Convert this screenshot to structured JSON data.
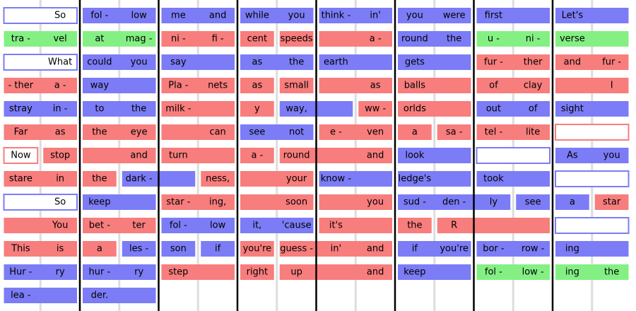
{
  "colors": {
    "red": "#f87d7d",
    "blue": "#7c7cf6",
    "green": "#84f084",
    "outline-blue": "#7c7cf6",
    "outline-red": "#f87d7d"
  },
  "rows": [
    {
      "blocks": [
        {
          "color": "outline-blue",
          "slots": [
            null,
            "So"
          ]
        },
        {
          "color": "blue",
          "slots": [
            "fol -",
            "low"
          ]
        },
        {
          "color": "blue",
          "slots": [
            "me",
            "and"
          ]
        },
        {
          "color": "blue",
          "slots": [
            "while",
            "you"
          ]
        },
        {
          "color": "blue",
          "slots": [
            "think -",
            "in'"
          ]
        },
        {
          "color": "blue",
          "slots": [
            "you",
            "were"
          ]
        },
        {
          "color": "blue",
          "slots": [
            "first",
            null
          ]
        },
        {
          "color": "blue",
          "slots": [
            "Let's",
            null
          ]
        }
      ]
    },
    {
      "blocks": [
        {
          "color": "green",
          "slots": [
            "tra -",
            "vel"
          ]
        },
        {
          "color": "green",
          "slots": [
            "at",
            "mag -"
          ]
        },
        {
          "color": "red",
          "slots": [
            "ni -",
            "fi -"
          ]
        },
        {
          "color": "red",
          "slots": [
            "cent"
          ]
        },
        {
          "color": "red",
          "slots": [
            "speeds"
          ]
        },
        {
          "color": "red",
          "slots": [
            null,
            "a -"
          ]
        },
        {
          "color": "blue",
          "slots": [
            "round",
            "the"
          ]
        },
        {
          "color": "green",
          "slots": [
            "u -",
            "ni -"
          ]
        },
        {
          "color": "green",
          "slots": [
            "verse",
            null
          ]
        }
      ]
    },
    {
      "blocks": [
        {
          "color": "outline-blue",
          "slots": [
            null,
            "What"
          ]
        },
        {
          "color": "blue",
          "slots": [
            "could",
            "you"
          ]
        },
        {
          "color": "blue",
          "slots": [
            "say",
            null
          ]
        },
        {
          "color": "blue",
          "slots": [
            "as",
            "the"
          ]
        },
        {
          "color": "blue",
          "slots": [
            "earth",
            null
          ]
        },
        {
          "color": "blue",
          "slots": [
            "gets",
            null
          ]
        },
        {
          "color": "red",
          "slots": [
            "fur -",
            "ther"
          ]
        },
        {
          "color": "red",
          "slots": [
            "and",
            "fur -"
          ]
        }
      ]
    },
    {
      "blocks": [
        {
          "color": "red",
          "slots": [
            "- ther",
            "a -"
          ]
        },
        {
          "color": "blue",
          "slots": [
            "way",
            null
          ]
        },
        {
          "color": "red",
          "slots": [
            "Pla -",
            "nets"
          ]
        },
        {
          "color": "red",
          "slots": [
            "as"
          ]
        },
        {
          "color": "red",
          "slots": [
            "small"
          ]
        },
        {
          "color": "red",
          "slots": [
            null,
            "as"
          ]
        },
        {
          "color": "red",
          "slots": [
            "balls",
            null
          ]
        },
        {
          "color": "red",
          "slots": [
            "of",
            "clay"
          ]
        },
        {
          "color": "red",
          "slots": [
            null,
            "I"
          ]
        }
      ]
    },
    {
      "blocks": [
        {
          "color": "blue",
          "slots": [
            "stray",
            "in -"
          ]
        },
        {
          "color": "blue",
          "slots": [
            "to",
            "the"
          ]
        },
        {
          "color": "red",
          "slots": [
            "milk -",
            null
          ]
        },
        {
          "color": "red",
          "slots": [
            "y"
          ]
        },
        {
          "color": "blue",
          "slots": [
            "way,",
            null
          ]
        },
        {
          "color": "red",
          "slots": [
            "ww -"
          ]
        },
        {
          "color": "red",
          "slots": [
            "orlds",
            null
          ]
        },
        {
          "color": "blue",
          "slots": [
            "out",
            "of"
          ]
        },
        {
          "color": "blue",
          "slots": [
            "sight",
            null
          ]
        }
      ]
    },
    {
      "blocks": [
        {
          "color": "red",
          "slots": [
            "Far",
            "as"
          ]
        },
        {
          "color": "red",
          "slots": [
            "the",
            "eye"
          ]
        },
        {
          "color": "red",
          "slots": [
            null,
            "can"
          ]
        },
        {
          "color": "blue",
          "slots": [
            "see",
            "not"
          ]
        },
        {
          "color": "red",
          "slots": [
            "e -",
            "ven"
          ]
        },
        {
          "color": "red",
          "slots": [
            "a"
          ]
        },
        {
          "color": "red",
          "slots": [
            "sa -"
          ]
        },
        {
          "color": "red",
          "slots": [
            "tel -",
            "lite"
          ]
        },
        {
          "color": "outline-red",
          "slots": [
            null,
            null
          ]
        }
      ]
    },
    {
      "blocks": [
        {
          "color": "outline-red",
          "slots": [
            "Now"
          ]
        },
        {
          "color": "red",
          "slots": [
            "stop"
          ]
        },
        {
          "color": "red",
          "slots": [
            null,
            "and"
          ]
        },
        {
          "color": "red",
          "slots": [
            "turn",
            null
          ]
        },
        {
          "color": "red",
          "slots": [
            "a -"
          ]
        },
        {
          "color": "red",
          "slots": [
            "round",
            null,
            "and"
          ]
        },
        {
          "color": "blue",
          "slots": [
            "look",
            null
          ]
        },
        {
          "color": "outline-blue",
          "slots": [
            null,
            null
          ]
        },
        {
          "color": "blue",
          "slots": [
            "As",
            "you"
          ]
        }
      ]
    },
    {
      "blocks": [
        {
          "color": "red",
          "slots": [
            "stare",
            "in"
          ]
        },
        {
          "color": "red",
          "slots": [
            "the"
          ]
        },
        {
          "color": "blue",
          "slots": [
            "dark -",
            null
          ]
        },
        {
          "color": "red",
          "slots": [
            "ness,"
          ]
        },
        {
          "color": "red",
          "slots": [
            null,
            "your"
          ]
        },
        {
          "color": "blue",
          "slots": [
            "know -",
            null
          ]
        },
        {
          "color": "blue",
          "slots": [
            "ledge's",
            null
          ]
        },
        {
          "color": "blue",
          "slots": [
            "took",
            null
          ]
        },
        {
          "color": "outline-blue",
          "slots": [
            null,
            null
          ]
        }
      ]
    },
    {
      "blocks": [
        {
          "color": "outline-blue",
          "slots": [
            null,
            "So"
          ]
        },
        {
          "color": "blue",
          "slots": [
            "keep",
            null
          ]
        },
        {
          "color": "red",
          "slots": [
            "star -",
            "ing,"
          ]
        },
        {
          "color": "red",
          "slots": [
            null,
            "soon"
          ]
        },
        {
          "color": "red",
          "slots": [
            null,
            "you"
          ]
        },
        {
          "color": "blue",
          "slots": [
            "sud -",
            "den -",
            "ly"
          ]
        },
        {
          "color": "blue",
          "slots": [
            "see"
          ]
        },
        {
          "color": "blue",
          "slots": [
            "a"
          ]
        },
        {
          "color": "red",
          "slots": [
            "star"
          ]
        }
      ]
    },
    {
      "blocks": [
        {
          "color": "red",
          "slots": [
            null,
            "You"
          ]
        },
        {
          "color": "red",
          "slots": [
            "bet -",
            "ter"
          ]
        },
        {
          "color": "blue",
          "slots": [
            "fol -",
            "low"
          ]
        },
        {
          "color": "blue",
          "slots": [
            "it,",
            "'cause"
          ]
        },
        {
          "color": "red",
          "slots": [
            "it's",
            null
          ]
        },
        {
          "color": "red",
          "slots": [
            "the"
          ]
        },
        {
          "color": "red",
          "slots": [
            "R",
            null,
            null
          ]
        },
        {
          "color": "outline-blue",
          "slots": [
            null,
            null
          ]
        }
      ]
    },
    {
      "blocks": [
        {
          "color": "red",
          "slots": [
            "This",
            "is"
          ]
        },
        {
          "color": "red",
          "slots": [
            "a"
          ]
        },
        {
          "color": "blue",
          "slots": [
            "les -"
          ]
        },
        {
          "color": "blue",
          "slots": [
            "son"
          ]
        },
        {
          "color": "blue",
          "slots": [
            "if"
          ]
        },
        {
          "color": "red",
          "slots": [
            "you're"
          ]
        },
        {
          "color": "red",
          "slots": [
            "guess -",
            "in'",
            "and"
          ]
        },
        {
          "color": "blue",
          "slots": [
            "if",
            "you're"
          ]
        },
        {
          "color": "blue",
          "slots": [
            "bor -",
            "row -"
          ]
        },
        {
          "color": "blue",
          "slots": [
            "ing",
            null
          ]
        }
      ]
    },
    {
      "blocks": [
        {
          "color": "blue",
          "slots": [
            "Hur -",
            "ry"
          ]
        },
        {
          "color": "blue",
          "slots": [
            "hur -",
            "ry"
          ]
        },
        {
          "color": "red",
          "slots": [
            "step",
            null
          ]
        },
        {
          "color": "red",
          "slots": [
            "right"
          ]
        },
        {
          "color": "red",
          "slots": [
            "up",
            null,
            "and"
          ]
        },
        {
          "color": "blue",
          "slots": [
            "keep",
            null
          ]
        },
        {
          "color": "green",
          "slots": [
            "fol -",
            "low -"
          ]
        },
        {
          "color": "green",
          "slots": [
            "ing",
            "the"
          ]
        }
      ]
    },
    {
      "blocks": [
        {
          "color": "blue",
          "slots": [
            "lea -",
            null
          ]
        },
        {
          "color": "blue",
          "slots": [
            "der.",
            null
          ]
        }
      ]
    }
  ]
}
